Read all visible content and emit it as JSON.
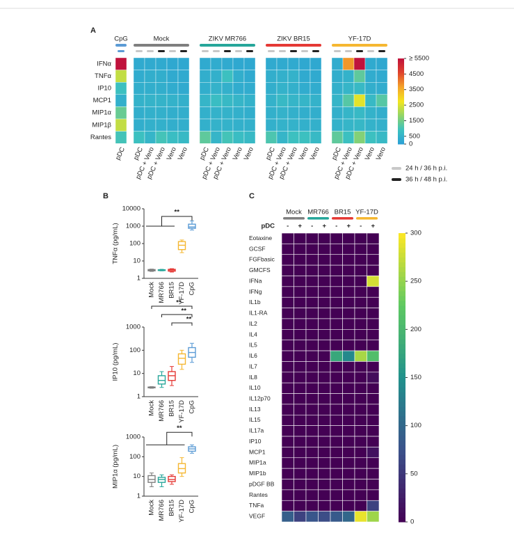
{
  "panel_labels": [
    "A",
    "B",
    "C"
  ],
  "chart_data": [
    {
      "type": "heatmap_groups",
      "groups": [
        {
          "name": "CpG",
          "color": "#5b9bd5",
          "columns": [
            {
              "label": "pDC",
              "marker": "#5b9bd5"
            }
          ]
        },
        {
          "name": "Mock",
          "color": "#7f7f7f",
          "columns": [
            {
              "label": "pDC",
              "marker": "#c8c8c8"
            },
            {
              "label": "pDC + Vero",
              "marker": "#c8c8c8"
            },
            {
              "label": "pDC + Vero",
              "marker": "#222222"
            },
            {
              "label": "Vero",
              "marker": "#c8c8c8"
            },
            {
              "label": "Vero",
              "marker": "#222222"
            }
          ]
        },
        {
          "name": "ZIKV MR766",
          "color": "#26a69a",
          "columns": [
            {
              "label": "pDC",
              "marker": "#c8c8c8"
            },
            {
              "label": "pDC + Vero",
              "marker": "#c8c8c8"
            },
            {
              "label": "pDC + Vero",
              "marker": "#222222"
            },
            {
              "label": "Vero",
              "marker": "#c8c8c8"
            },
            {
              "label": "Vero",
              "marker": "#222222"
            }
          ]
        },
        {
          "name": "ZIKV BR15",
          "color": "#e53935",
          "columns": [
            {
              "label": "pDC",
              "marker": "#c8c8c8"
            },
            {
              "label": "pDC + Vero",
              "marker": "#c8c8c8"
            },
            {
              "label": "pDC + Vero",
              "marker": "#222222"
            },
            {
              "label": "Vero",
              "marker": "#c8c8c8"
            },
            {
              "label": "Vero",
              "marker": "#222222"
            }
          ]
        },
        {
          "name": "YF-17D",
          "color": "#f5b731",
          "columns": [
            {
              "label": "pDC",
              "marker": "#c8c8c8"
            },
            {
              "label": "pDC + Vero",
              "marker": "#c8c8c8"
            },
            {
              "label": "pDC + Vero",
              "marker": "#222222"
            },
            {
              "label": "Vero",
              "marker": "#c8c8c8"
            },
            {
              "label": "Vero",
              "marker": "#222222"
            }
          ]
        }
      ],
      "rows": [
        "IFNα",
        "TNFα",
        "IP10",
        "MCP1",
        "MIP1α",
        "MIP1β",
        "Rantes"
      ],
      "values": [
        [
          5500,
          300,
          300,
          300,
          250,
          250,
          300,
          350,
          300,
          250,
          250,
          300,
          300,
          300,
          250,
          250,
          350,
          3800,
          5500,
          300,
          250
        ],
        [
          2300,
          350,
          400,
          400,
          300,
          300,
          400,
          450,
          900,
          400,
          300,
          400,
          450,
          500,
          300,
          300,
          400,
          500,
          1300,
          350,
          300
        ],
        [
          900,
          400,
          400,
          400,
          350,
          300,
          400,
          500,
          450,
          350,
          350,
          400,
          500,
          450,
          350,
          350,
          450,
          600,
          700,
          400,
          350
        ],
        [
          450,
          500,
          550,
          550,
          500,
          450,
          600,
          800,
          700,
          600,
          500,
          500,
          700,
          600,
          600,
          500,
          600,
          1200,
          2600,
          700,
          1200
        ],
        [
          1400,
          400,
          450,
          450,
          400,
          400,
          450,
          500,
          500,
          450,
          400,
          450,
          500,
          450,
          400,
          400,
          450,
          600,
          700,
          500,
          400
        ],
        [
          2300,
          400,
          450,
          450,
          400,
          400,
          450,
          500,
          500,
          450,
          450,
          450,
          500,
          500,
          450,
          450,
          500,
          600,
          650,
          500,
          450
        ],
        [
          1000,
          900,
          600,
          1000,
          800,
          700,
          1300,
          600,
          1000,
          800,
          700,
          1100,
          600,
          900,
          900,
          700,
          1300,
          900,
          1700,
          900,
          700
        ]
      ],
      "clim": [
        0,
        5500
      ],
      "cticks": [
        0,
        500,
        1500,
        2500,
        3500,
        4500,
        {
          "value": 5500,
          "label": "≥ 5500"
        }
      ],
      "colorscale": [
        "#2a9fd6",
        "#3cc1c0",
        "#8fd46a",
        "#f3e61f",
        "#f4a52a",
        "#e0452c",
        "#c0123c"
      ],
      "legend": [
        {
          "name": "24 h / 36 h p.i.",
          "color": "#c8c8c8"
        },
        {
          "name": "36 h / 48 h p.i.",
          "color": "#222222"
        }
      ]
    },
    {
      "type": "box",
      "ylabel": "TNFα (pg/mL)",
      "log": true,
      "ylim": [
        1,
        10000
      ],
      "yticks": [
        1,
        10,
        100,
        1000,
        10000
      ],
      "categories": [
        "Mock",
        "MR766",
        "BR15",
        "YF-17D",
        "CpG"
      ],
      "colors": [
        "#7f7f7f",
        "#26a69a",
        "#e53935",
        "#f5b731",
        "#5b9bd5"
      ],
      "boxes": [
        {
          "min": 2.5,
          "q1": 2.7,
          "median": 3,
          "q3": 3.2,
          "max": 3.4
        },
        {
          "min": 2.7,
          "q1": 2.9,
          "median": 3,
          "q3": 3.1,
          "max": 3.3
        },
        {
          "min": 2.3,
          "q1": 2.6,
          "median": 3,
          "q3": 3.3,
          "max": 3.6
        },
        {
          "min": 30,
          "q1": 45,
          "median": 80,
          "q3": 130,
          "max": 160
        },
        {
          "min": 600,
          "q1": 750,
          "median": 900,
          "q3": 1300,
          "max": 2000
        }
      ],
      "annotations": [
        "**"
      ]
    },
    {
      "type": "box",
      "ylabel": "IP10 (pg/mL)",
      "log": true,
      "ylim": [
        1,
        1000
      ],
      "yticks": [
        1,
        10,
        100,
        1000
      ],
      "categories": [
        "Mock",
        "MR766",
        "BR15",
        "YF-17D",
        "CpG"
      ],
      "colors": [
        "#7f7f7f",
        "#26a69a",
        "#e53935",
        "#f5b731",
        "#5b9bd5"
      ],
      "boxes": [
        {
          "min": 2.3,
          "q1": 2.4,
          "median": 2.5,
          "q3": 2.6,
          "max": 2.7
        },
        {
          "min": 2.5,
          "q1": 3.5,
          "median": 5,
          "q3": 8,
          "max": 12
        },
        {
          "min": 3,
          "q1": 5,
          "median": 8,
          "q3": 12,
          "max": 20
        },
        {
          "min": 15,
          "q1": 25,
          "median": 45,
          "q3": 70,
          "max": 100
        },
        {
          "min": 30,
          "q1": 50,
          "median": 80,
          "q3": 130,
          "max": 200
        }
      ],
      "annotations": [
        "**",
        "**",
        "**"
      ]
    },
    {
      "type": "box",
      "ylabel": "MIP1α (pg/mL)",
      "log": true,
      "ylim": [
        1,
        1000
      ],
      "yticks": [
        1,
        10,
        100,
        1000
      ],
      "categories": [
        "Mock",
        "MR766",
        "BR15",
        "YF-17D",
        "CpG"
      ],
      "colors": [
        "#7f7f7f",
        "#26a69a",
        "#e53935",
        "#f5b731",
        "#5b9bd5"
      ],
      "boxes": [
        {
          "min": 3,
          "q1": 5,
          "median": 7,
          "q3": 11,
          "max": 15
        },
        {
          "min": 3,
          "q1": 5,
          "median": 7,
          "q3": 9,
          "max": 12
        },
        {
          "min": 4,
          "q1": 5.5,
          "median": 7,
          "q3": 10,
          "max": 12
        },
        {
          "min": 10,
          "q1": 15,
          "median": 25,
          "q3": 45,
          "max": 90
        },
        {
          "min": 150,
          "q1": 190,
          "median": 250,
          "q3": 320,
          "max": 400
        }
      ],
      "annotations": [
        "**"
      ]
    },
    {
      "type": "heatmap_pairs",
      "header": "pDC",
      "groups": [
        {
          "name": "Mock",
          "color": "#7f7f7f",
          "columns": [
            "-",
            "+"
          ]
        },
        {
          "name": "MR766",
          "color": "#26a69a",
          "columns": [
            "-",
            "+"
          ]
        },
        {
          "name": "BR15",
          "color": "#e53935",
          "columns": [
            "-",
            "+"
          ]
        },
        {
          "name": "YF-17D",
          "color": "#f5b731",
          "columns": [
            "-",
            "+"
          ]
        }
      ],
      "rows": [
        "Eotaxine",
        "GCSF",
        "FGFbasic",
        "GMCFS",
        "IFNa",
        "IFNg",
        "IL1b",
        "IL1-RA",
        "IL2",
        "IL4",
        "IL5",
        "IL6",
        "IL7",
        "IL8",
        "IL10",
        "IL12p70",
        "IL13",
        "IL15",
        "IL17a",
        "IP10",
        "MCP1",
        "MIP1a",
        "MIP1b",
        "pDGF BB",
        "Rantes",
        "TNFa",
        "VEGF"
      ],
      "values": [
        [
          0,
          0,
          0,
          0,
          0,
          0,
          0,
          0
        ],
        [
          0,
          0,
          0,
          0,
          0,
          0,
          0,
          0
        ],
        [
          0,
          0,
          0,
          0,
          0,
          0,
          0,
          0
        ],
        [
          0,
          0,
          0,
          0,
          0,
          0,
          0,
          0
        ],
        [
          0,
          0,
          0,
          0,
          0,
          0,
          0,
          280
        ],
        [
          0,
          0,
          0,
          0,
          0,
          0,
          0,
          0
        ],
        [
          0,
          0,
          0,
          0,
          0,
          0,
          0,
          0
        ],
        [
          0,
          0,
          0,
          0,
          0,
          0,
          0,
          0
        ],
        [
          0,
          0,
          0,
          0,
          0,
          0,
          0,
          0
        ],
        [
          0,
          0,
          0,
          0,
          0,
          0,
          0,
          0
        ],
        [
          0,
          0,
          0,
          0,
          0,
          0,
          0,
          0
        ],
        [
          0,
          0,
          0,
          0,
          180,
          140,
          260,
          210
        ],
        [
          0,
          0,
          0,
          0,
          0,
          0,
          0,
          0
        ],
        [
          0,
          0,
          0,
          0,
          0,
          0,
          0,
          10
        ],
        [
          0,
          0,
          0,
          0,
          0,
          0,
          0,
          0
        ],
        [
          0,
          0,
          0,
          0,
          0,
          0,
          0,
          0
        ],
        [
          0,
          0,
          0,
          0,
          0,
          0,
          0,
          0
        ],
        [
          0,
          0,
          0,
          0,
          0,
          0,
          0,
          0
        ],
        [
          0,
          0,
          0,
          0,
          0,
          0,
          0,
          0
        ],
        [
          0,
          0,
          0,
          0,
          0,
          0,
          0,
          0
        ],
        [
          0,
          0,
          0,
          0,
          0,
          0,
          0,
          15
        ],
        [
          0,
          0,
          0,
          0,
          0,
          0,
          0,
          0
        ],
        [
          0,
          0,
          0,
          0,
          0,
          0,
          0,
          0
        ],
        [
          0,
          0,
          0,
          0,
          0,
          0,
          0,
          0
        ],
        [
          0,
          0,
          0,
          0,
          0,
          0,
          0,
          0
        ],
        [
          0,
          0,
          0,
          0,
          0,
          0,
          0,
          60
        ],
        [
          90,
          60,
          80,
          70,
          85,
          100,
          290,
          255
        ]
      ],
      "clim": [
        0,
        300
      ],
      "cticks": [
        0,
        50,
        100,
        150,
        200,
        250,
        300
      ],
      "colorscale": [
        "#440154",
        "#3b528b",
        "#21918c",
        "#5ec962",
        "#fde725"
      ]
    }
  ]
}
